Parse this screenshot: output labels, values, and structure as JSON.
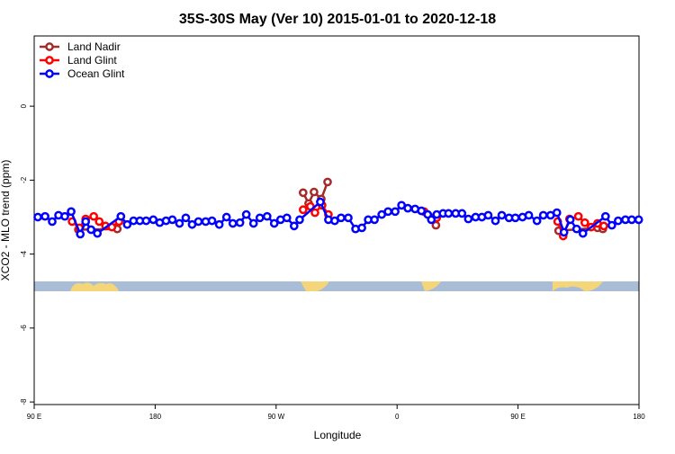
{
  "chart_data": {
    "type": "line",
    "title": "35S-30S May (Ver 10)   2015-01-01 to 2020-12-18",
    "x_label": "Longitude",
    "y_label": "XCO2 - MLO trend (ppm)",
    "xlim": [
      90,
      540
    ],
    "xticks": [
      {
        "value": 90,
        "label": "90 E"
      },
      180,
      {
        "value": 270,
        "label": "90 W"
      },
      {
        "value": 360,
        "label": "0"
      },
      {
        "value": 450,
        "label": "90 E"
      },
      {
        "value": 540,
        "label": "180"
      }
    ],
    "ylim": [
      -8.07,
      1.9
    ],
    "yticks": [
      0,
      -2,
      -4,
      -6,
      -8
    ],
    "legend": "top-left",
    "series": [
      {
        "name": "Land Nadir",
        "color": "#a52a2a",
        "x": [
          122.9,
          151.8,
          245,
          290.1,
          294.2,
          298.2,
          303.6,
          308.3,
          340,
          385.5,
          388.9,
          450,
          480.2,
          509.1,
          513.1
        ],
        "values": [
          -3.34,
          -3.32,
          null,
          -2.34,
          -2.63,
          -2.32,
          -2.51,
          -2.05,
          null,
          -3.05,
          -3.22,
          null,
          -3.37,
          -3.29,
          -3.32
        ]
      },
      {
        "name": "Land Glint",
        "color": "#ff0000",
        "x": [
          118.2,
          123.6,
          128.3,
          134.3,
          138.4,
          143.1,
          147.8,
          153.1,
          245,
          290.1,
          295.5,
          298.9,
          304.2,
          308.9,
          340,
          380.1,
          385.5,
          389.5,
          450,
          479.5,
          483.6,
          488.3,
          494.9,
          499.7,
          504.4,
          509.1,
          513.8
        ],
        "values": [
          -3.12,
          -3.29,
          -3.05,
          -2.98,
          -3.12,
          -3.24,
          -3.27,
          -3.12,
          null,
          -2.8,
          -2.71,
          -2.88,
          -2.68,
          -2.93,
          null,
          -2.85,
          -3.02,
          -3.02,
          null,
          -3.12,
          -3.51,
          -3.05,
          -2.98,
          -3.15,
          -3.27,
          -3.17,
          -3.24
        ]
      },
      {
        "name": "Ocean Glint",
        "color": "#0000ff",
        "x": [
          92.7,
          98.1,
          103.4,
          108.1,
          112.8,
          117.5,
          124.3,
          128.3,
          132.3,
          137.0,
          154.5,
          159.2,
          163.9,
          168.6,
          173.3,
          178.6,
          183.4,
          188.1,
          192.8,
          198.1,
          202.8,
          207.5,
          212.2,
          217.6,
          222.3,
          227.7,
          233.1,
          237.8,
          243.1,
          247.8,
          253.2,
          257.9,
          263.3,
          268.6,
          273.3,
          278.0,
          283.4,
          287.5,
          302.9,
          308.9,
          313.6,
          318.3,
          323.7,
          329.1,
          333.8,
          338.5,
          343.2,
          348.6,
          353.3,
          358.6,
          363.3,
          368.0,
          373.4,
          378.1,
          382.8,
          385.5,
          389.5,
          394.2,
          398.3,
          403.6,
          408.3,
          413.0,
          418.4,
          423.1,
          427.8,
          433.2,
          437.9,
          443.3,
          448.0,
          453.3,
          458.0,
          464.1,
          468.8,
          474.2,
          478.9,
          484.2,
          488.9,
          493.6,
          498.3,
          515.1,
          519.8,
          524.5,
          529.9,
          534.6,
          539.8
        ],
        "values": [
          -3.0,
          -2.98,
          -3.12,
          -2.95,
          -2.98,
          -2.85,
          -3.46,
          -3.12,
          -3.34,
          -3.44,
          -2.98,
          -3.2,
          -3.1,
          -3.1,
          -3.1,
          -3.07,
          -3.15,
          -3.1,
          -3.07,
          -3.17,
          -3.02,
          -3.2,
          -3.12,
          -3.12,
          -3.1,
          -3.2,
          -3.0,
          -3.17,
          -3.15,
          -2.93,
          -3.17,
          -3.02,
          -2.98,
          -3.17,
          -3.07,
          -3.02,
          -3.24,
          -3.07,
          -2.59,
          -3.07,
          -3.1,
          -3.02,
          -3.02,
          -3.32,
          -3.29,
          -3.07,
          -3.07,
          -2.93,
          -2.85,
          -2.85,
          -2.68,
          -2.76,
          -2.78,
          -2.83,
          -2.93,
          -3.07,
          -2.93,
          -2.9,
          -2.9,
          -2.9,
          -2.9,
          -3.05,
          -3.0,
          -3.0,
          -2.95,
          -3.1,
          -2.95,
          -3.02,
          -3.02,
          -3.0,
          -2.95,
          -3.1,
          -2.95,
          -2.95,
          -2.88,
          -3.41,
          -3.07,
          -3.32,
          -3.44,
          -2.98,
          -3.22,
          -3.1,
          -3.07,
          -3.07,
          -3.07
        ]
      }
    ]
  }
}
